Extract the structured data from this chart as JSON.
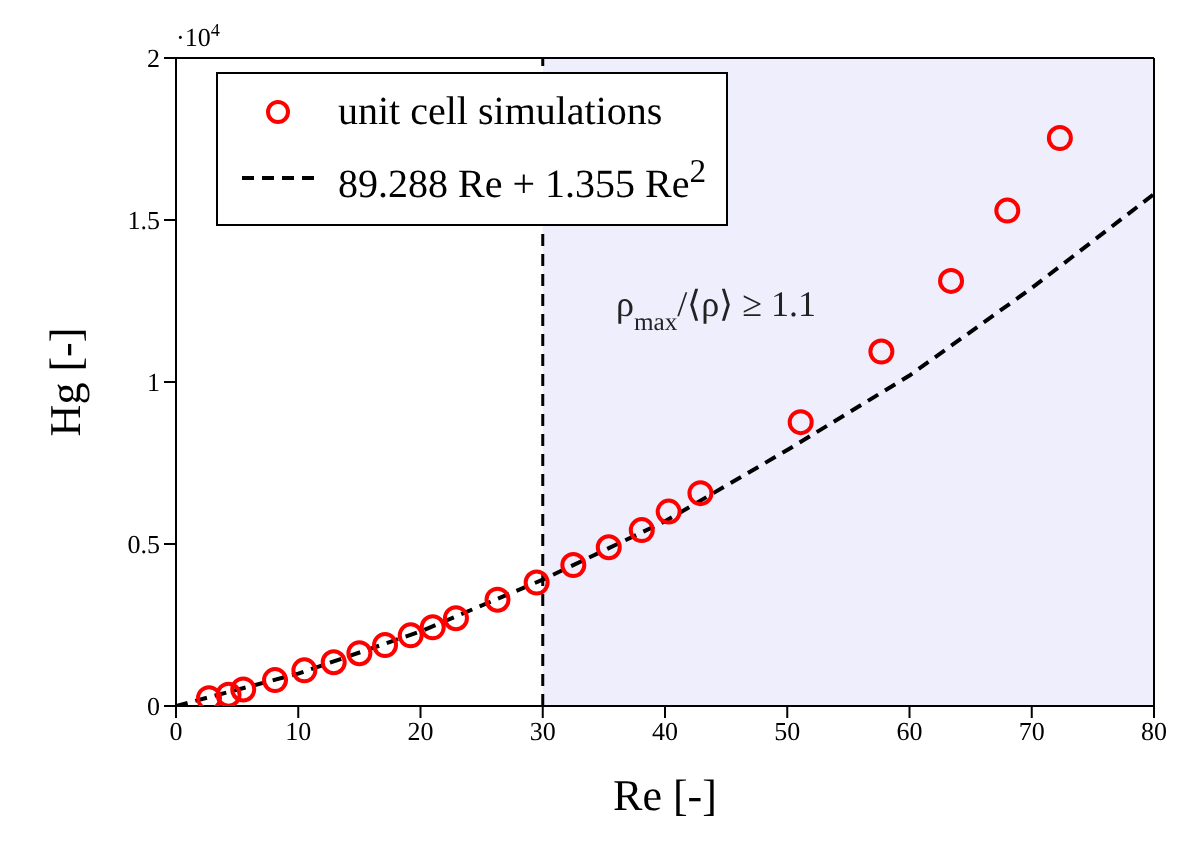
{
  "chart_data": {
    "type": "scatter",
    "xlabel": "Re [-]",
    "ylabel": "Hg [-]",
    "xlim": [
      0,
      80
    ],
    "xticks": [
      0,
      10,
      20,
      30,
      40,
      50,
      60,
      70,
      80
    ],
    "ylim": [
      0,
      2
    ],
    "yticks": [
      0,
      0.5,
      1,
      1.5,
      2
    ],
    "legend": "top left",
    "bands": [
      {
        "axis": "x",
        "from": 30,
        "to": 80,
        "label": null,
        "color": "#eeeefc"
      }
    ],
    "ref_lines": [
      {
        "axis": "x",
        "value": 30,
        "label": null,
        "color": "#000000",
        "line_style": "dashed"
      }
    ],
    "annotations": [
      "·10$^{4}$",
      "ρ$_{max}$/⟨ρ⟩ ≥ 1.1"
    ],
    "series": [
      {
        "name": "unit cell simulations",
        "marker": "circle",
        "color": "#ff0000",
        "x": [
          2.7,
          4.3,
          5.5,
          8.1,
          10.5,
          12.9,
          15.0,
          17.1,
          19.2,
          21.0,
          22.9,
          26.3,
          29.5,
          32.5,
          35.4,
          38.1,
          40.3,
          42.9,
          51.1,
          57.7,
          63.4,
          68.0,
          72.3
        ],
        "values": [
          0.024,
          0.035,
          0.051,
          0.08,
          0.11,
          0.135,
          0.163,
          0.188,
          0.218,
          0.243,
          0.271,
          0.328,
          0.381,
          0.435,
          0.49,
          0.543,
          0.6,
          0.657,
          0.876,
          1.094,
          1.312,
          1.529,
          1.753
        ]
      },
      {
        "name": "89.288 Re + 1.355 Re$^{2}$",
        "type": "line",
        "marker": "none",
        "line_style": "dashed",
        "color": "#000000",
        "x": [
          0,
          10,
          20,
          30,
          40,
          50,
          60,
          70,
          80
        ],
        "values": [
          0,
          0.1,
          0.23,
          0.39,
          0.57,
          0.79,
          1.02,
          1.29,
          1.58
        ]
      }
    ]
  }
}
